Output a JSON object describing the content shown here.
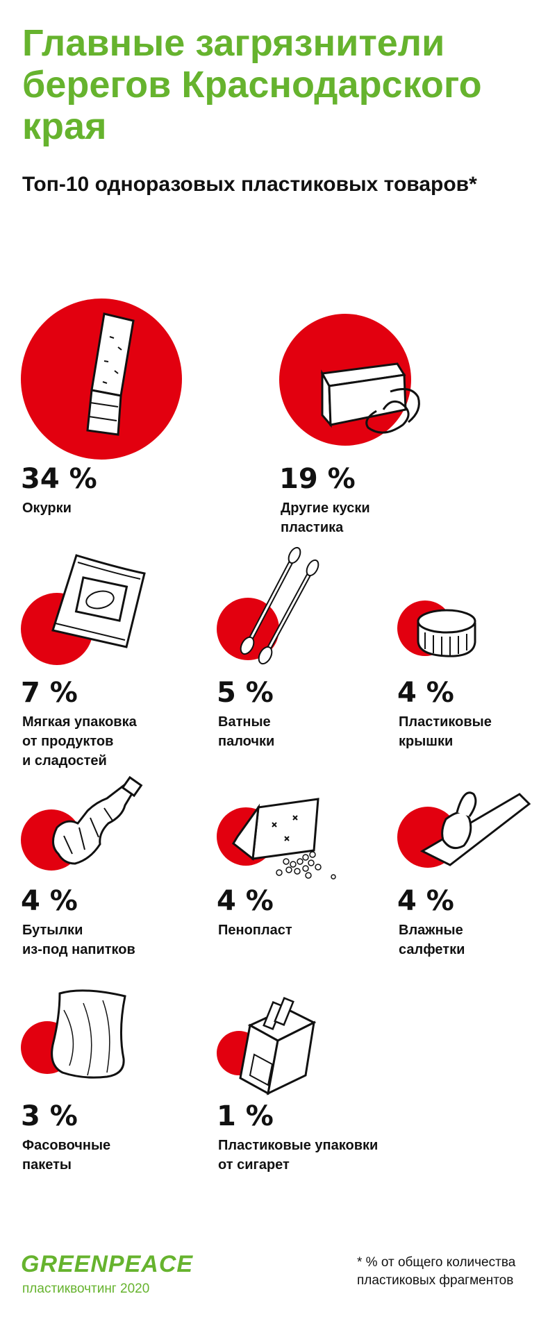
{
  "title": "Главные загрязнители берегов Краснодарского края",
  "subtitle": "Топ-10 одноразовых пластиковых товаров*",
  "colors": {
    "title_green": "#66b32e",
    "circle_red": "#e2000f",
    "text": "#111111"
  },
  "chart_data": {
    "type": "pictorial-bubble",
    "unit": "%",
    "items": [
      {
        "label": "Окурки",
        "value": 34,
        "value_text": "34 %",
        "icon": "cigarette-butt-icon"
      },
      {
        "label": "Другие куски пластика",
        "value": 19,
        "value_text": "19 %",
        "icon": "plastic-piece-icon"
      },
      {
        "label": "Мягкая упаковка от продуктов и сладостей",
        "value": 7,
        "value_text": "7 %",
        "icon": "snack-wrapper-icon"
      },
      {
        "label": "Ватные палочки",
        "value": 5,
        "value_text": "5 %",
        "icon": "cotton-swab-icon"
      },
      {
        "label": "Пластиковые крышки",
        "value": 4,
        "value_text": "4 %",
        "icon": "bottle-cap-icon"
      },
      {
        "label": "Бутылки из-под напитков",
        "value": 4,
        "value_text": "4 %",
        "icon": "crushed-bottle-icon"
      },
      {
        "label": "Пенопласт",
        "value": 4,
        "value_text": "4 %",
        "icon": "foam-block-icon"
      },
      {
        "label": "Влажные салфетки",
        "value": 4,
        "value_text": "4 %",
        "icon": "wet-wipe-icon"
      },
      {
        "label": "Фасовочные пакеты",
        "value": 3,
        "value_text": "3 %",
        "icon": "plastic-bag-icon"
      },
      {
        "label": "Пластиковые упаковки от сигарет",
        "value": 1,
        "value_text": "1 %",
        "icon": "cigarette-pack-icon"
      }
    ]
  },
  "labels": [
    "Окурки",
    "Другие куски\nпластика",
    "Мягкая упаковка\nот продуктов\nи сладостей",
    "Ватные\nпалочки",
    "Пластиковые\nкрышки",
    "Бутылки\nиз-под напитков",
    "Пенопласт",
    "Влажные\nсалфетки",
    "Фасовочные\nпакеты",
    "Пластиковые упаковки\nот сигарет"
  ],
  "footer": {
    "logo": "GREENPEACE",
    "caption": "пластиквочтинг 2020",
    "footnote": "* % от общего количества\n   пластиковых фрагментов"
  }
}
